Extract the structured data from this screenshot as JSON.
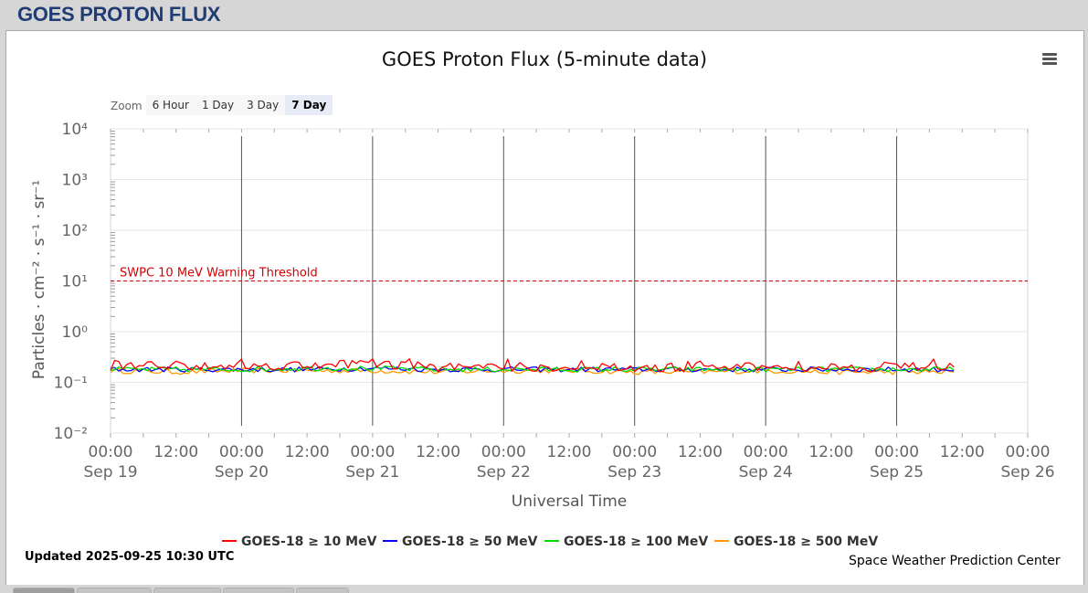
{
  "page": {
    "title": "GOES PROTON FLUX"
  },
  "menu": {
    "icon": "hamburger-menu-icon"
  },
  "zoom": {
    "label": "Zoom",
    "buttons": [
      "6 Hour",
      "1 Day",
      "3 Day",
      "7 Day"
    ],
    "selected": "7 Day"
  },
  "footer": {
    "updated": "Updated 2025-09-25 10:30 UTC",
    "credits": "Space Weather Prediction Center"
  },
  "chart_data": {
    "type": "line",
    "title": "GOES Proton Flux (5-minute data)",
    "xlabel": "Universal Time",
    "ylabel": "Particles · cm⁻² · s⁻¹ · sr⁻¹",
    "yscale": "log",
    "ylim": [
      0.01,
      10000
    ],
    "xlim": [
      "2025-09-19 00:00",
      "2025-09-26 00:00"
    ],
    "y_ticks": [
      "10⁻²",
      "10⁻¹",
      "10⁰",
      "10¹",
      "10²",
      "10³",
      "10⁴"
    ],
    "x_ticks": [
      {
        "time": "00:00",
        "date": "Sep 19"
      },
      {
        "time": "12:00",
        "date": ""
      },
      {
        "time": "00:00",
        "date": "Sep 20"
      },
      {
        "time": "12:00",
        "date": ""
      },
      {
        "time": "00:00",
        "date": "Sep 21"
      },
      {
        "time": "12:00",
        "date": ""
      },
      {
        "time": "00:00",
        "date": "Sep 22"
      },
      {
        "time": "12:00",
        "date": ""
      },
      {
        "time": "00:00",
        "date": "Sep 23"
      },
      {
        "time": "12:00",
        "date": ""
      },
      {
        "time": "00:00",
        "date": "Sep 24"
      },
      {
        "time": "12:00",
        "date": ""
      },
      {
        "time": "00:00",
        "date": "Sep 25"
      },
      {
        "time": "12:00",
        "date": ""
      },
      {
        "time": "00:00",
        "date": "Sep 26"
      }
    ],
    "grid": true,
    "legend_position": "bottom",
    "threshold": {
      "label": "SWPC 10 MeV Warning Threshold",
      "value": 10,
      "color": "#d40000"
    },
    "x": [
      "Sep 19 00:00",
      "Sep 19 12:00",
      "Sep 20 00:00",
      "Sep 20 12:00",
      "Sep 21 00:00",
      "Sep 21 12:00",
      "Sep 22 00:00",
      "Sep 22 12:00",
      "Sep 23 00:00",
      "Sep 23 12:00",
      "Sep 24 00:00",
      "Sep 24 12:00",
      "Sep 25 00:00",
      "Sep 25 10:30"
    ],
    "series": [
      {
        "name": "GOES-18 ≥ 10 MeV",
        "color": "#ff0000",
        "values": [
          0.21,
          0.22,
          0.21,
          0.22,
          0.24,
          0.2,
          0.2,
          0.2,
          0.19,
          0.2,
          0.2,
          0.2,
          0.2,
          0.2
        ]
      },
      {
        "name": "GOES-18 ≥ 50 MeV",
        "color": "#0000ff",
        "values": [
          0.18,
          0.18,
          0.18,
          0.18,
          0.19,
          0.18,
          0.18,
          0.18,
          0.18,
          0.18,
          0.18,
          0.18,
          0.18,
          0.18
        ]
      },
      {
        "name": "GOES-18 ≥ 100 MeV",
        "color": "#00dd00",
        "values": [
          0.18,
          0.18,
          0.18,
          0.19,
          0.19,
          0.18,
          0.18,
          0.18,
          0.18,
          0.18,
          0.18,
          0.18,
          0.18,
          0.18
        ]
      },
      {
        "name": "GOES-18 ≥ 500 MeV",
        "color": "#ff9900",
        "values": [
          0.17,
          0.16,
          0.17,
          0.17,
          0.17,
          0.16,
          0.17,
          0.17,
          0.16,
          0.16,
          0.17,
          0.16,
          0.16,
          0.16
        ]
      }
    ]
  }
}
